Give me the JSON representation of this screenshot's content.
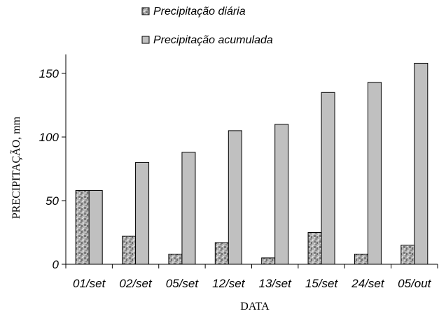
{
  "chart_data": {
    "type": "bar",
    "title": "",
    "xlabel": "DATA",
    "ylabel": "PRECIPITAÇÃO, mm",
    "categories": [
      "01/set",
      "02/set",
      "05/set",
      "12/set",
      "13/set",
      "15/set",
      "24/set",
      "05/out"
    ],
    "series": [
      {
        "name": "Precipitação diária",
        "values": [
          58,
          22,
          8,
          17,
          5,
          25,
          8,
          15
        ],
        "color": "#9a9a9a",
        "pattern": "mottled"
      },
      {
        "name": "Precipitação acumulada",
        "values": [
          58,
          80,
          88,
          105,
          110,
          135,
          143,
          158
        ],
        "color": "#c0c0c0",
        "pattern": "solid"
      }
    ],
    "ylim": [
      0,
      165
    ],
    "yticks": [
      0,
      50,
      100,
      150
    ],
    "grid": false,
    "legend": "top-center"
  }
}
